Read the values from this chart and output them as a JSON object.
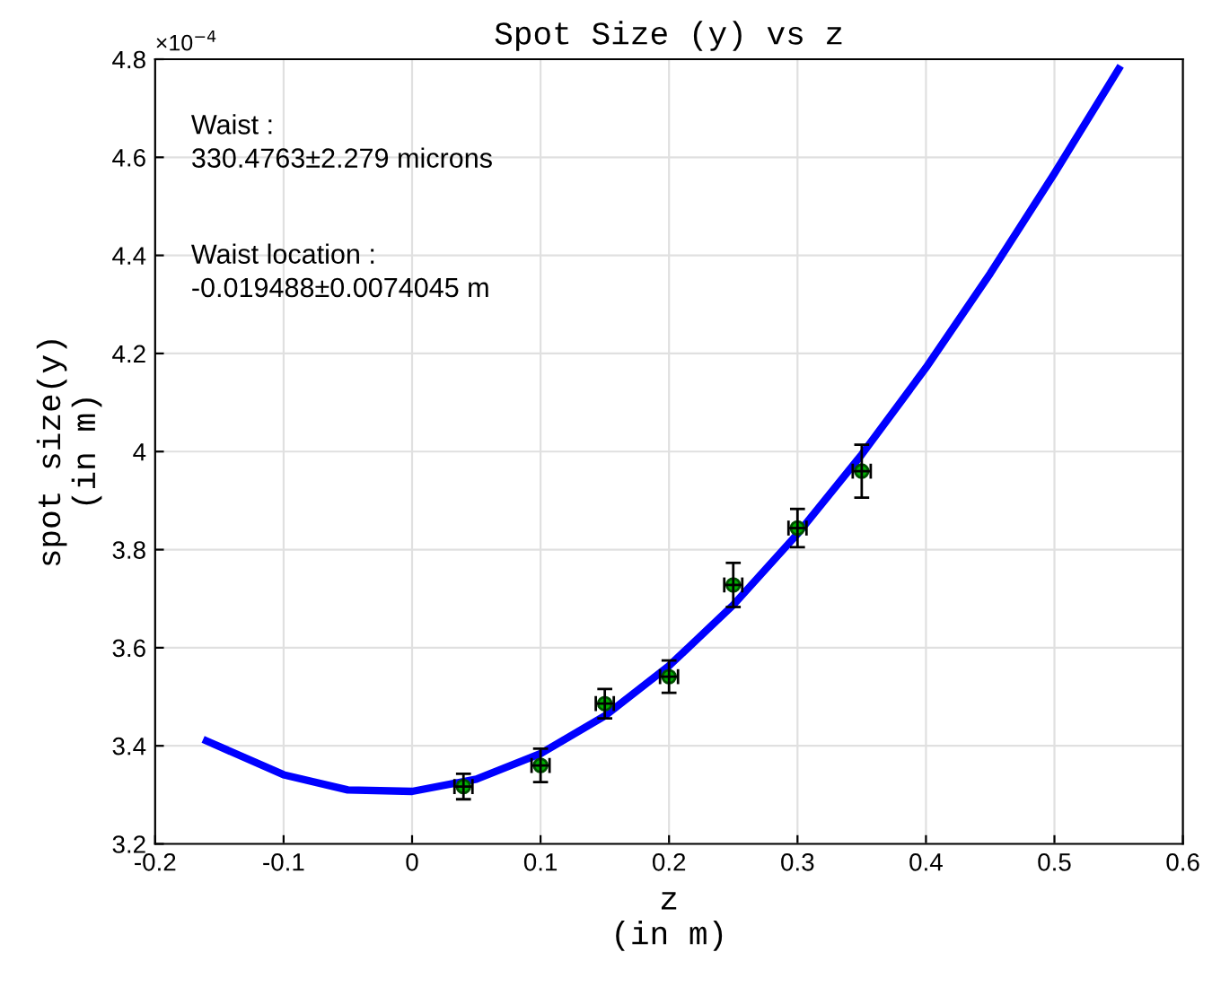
{
  "chart_data": {
    "type": "scatter",
    "title": "Spot Size (y) vs z",
    "xlabel": "z\n(in m)",
    "ylabel": "spot size(y)\n(in m)",
    "annotations": [
      "×10$^{−4}$",
      "Waist :\n330.4763±2.279 microns",
      "Waist location :\n-0.019488±0.0074045 m"
    ],
    "xlim": [
      -0.2,
      0.6
    ],
    "xticks": [
      -0.2,
      -0.1,
      0,
      0.1,
      0.2,
      0.3,
      0.4,
      0.5,
      0.6
    ],
    "ylim": [
      3.2,
      4.8
    ],
    "yticks": [
      3.2,
      3.4,
      3.6,
      3.8,
      4,
      4.2,
      4.4,
      4.6,
      4.8
    ],
    "grid": true,
    "marker": "circle",
    "series": [
      {
        "type": "line",
        "color": "#0000ff",
        "marker": "none",
        "line_style": "solid",
        "x": [
          -0.16,
          -0.1,
          -0.05,
          0,
          0.05,
          0.1,
          0.15,
          0.2,
          0.25,
          0.3,
          0.35,
          0.4,
          0.45,
          0.5,
          0.55
        ],
        "values": [
          3.41,
          3.341,
          3.31,
          3.307,
          3.332,
          3.384,
          3.461,
          3.563,
          3.687,
          3.832,
          3.994,
          4.171,
          4.363,
          4.567,
          4.78
        ]
      },
      {
        "color": "#00b000",
        "x": [
          0.04,
          0.1,
          0.15,
          0.2,
          0.25,
          0.3,
          0.35
        ],
        "values": [
          3.317,
          3.36,
          3.486,
          3.541,
          3.728,
          3.844,
          3.96
        ],
        "errors": [
          0.026,
          0.034,
          0.03,
          0.033,
          0.045,
          0.039,
          0.054
        ],
        "xerrors": [
          0.007,
          0.007,
          0.007,
          0.007,
          0.007,
          0.007,
          0.007
        ]
      }
    ]
  }
}
